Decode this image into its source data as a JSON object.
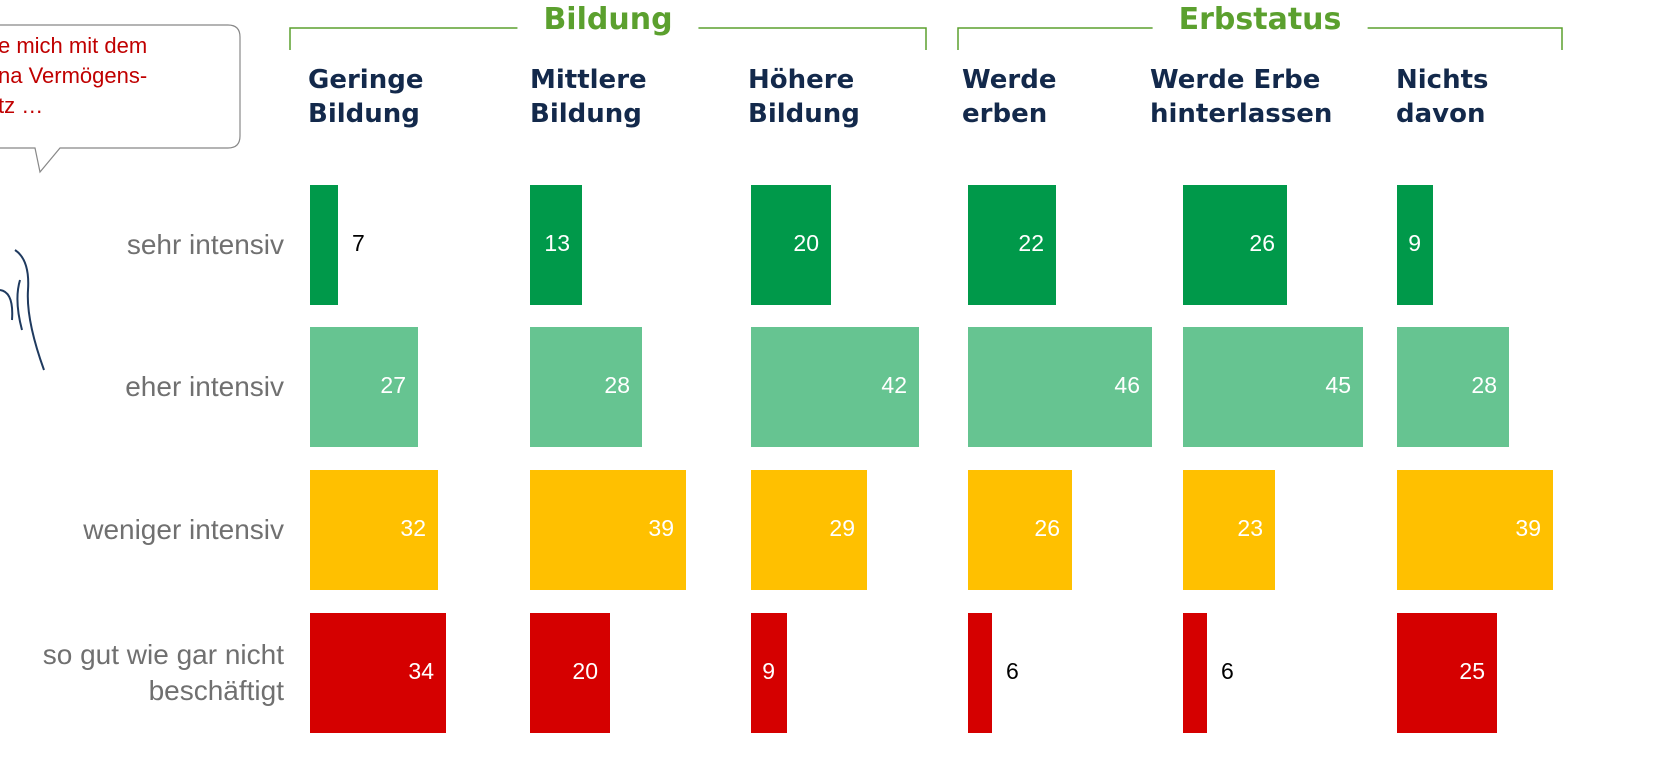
{
  "callout": {
    "lines": [
      "e mich mit dem",
      "na Vermögens-",
      "tz …"
    ]
  },
  "chart_data": {
    "type": "bar",
    "categories": [
      "sehr intensiv",
      "eher intensiv",
      "weniger intensiv",
      "so gut wie gar nicht\nbeschäftigt"
    ],
    "colors": [
      "#00994a",
      "#66c491",
      "#ffc000",
      "#d50000"
    ],
    "groups": [
      {
        "name": "Bildung",
        "series": [
          {
            "name": "Geringe\nBildung",
            "values": [
              7,
              27,
              32,
              34
            ]
          },
          {
            "name": "Mittlere\nBildung",
            "values": [
              13,
              28,
              39,
              20
            ]
          },
          {
            "name": "Höhere\nBildung",
            "values": [
              20,
              42,
              29,
              9
            ]
          }
        ]
      },
      {
        "name": "Erbstatus",
        "series": [
          {
            "name": "Werde\nerben",
            "values": [
              22,
              46,
              26,
              6
            ]
          },
          {
            "name": "Werde Erbe\nhinterlassen",
            "values": [
              26,
              45,
              23,
              6
            ]
          },
          {
            "name": "Nichts\ndavon",
            "values": [
              9,
              28,
              39,
              25
            ]
          }
        ]
      }
    ]
  }
}
